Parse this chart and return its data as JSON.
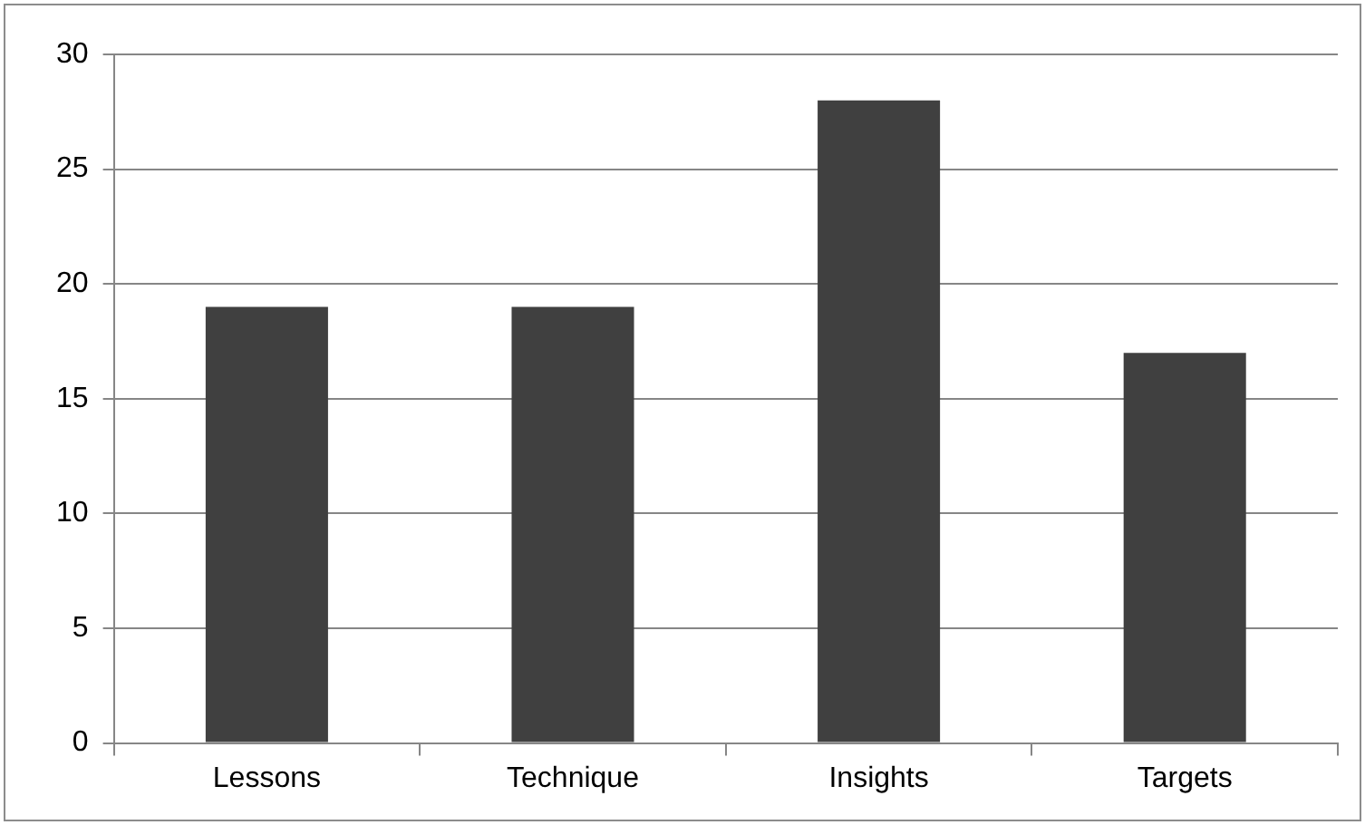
{
  "chart_data": {
    "type": "bar",
    "categories": [
      "Lessons",
      "Technique",
      "Insights",
      "Targets"
    ],
    "values": [
      19,
      19,
      28,
      17
    ],
    "color": "#404040",
    "ylim": [
      0,
      30
    ],
    "yticks": [
      0,
      5,
      10,
      15,
      20,
      25,
      30
    ],
    "grid": "y"
  }
}
